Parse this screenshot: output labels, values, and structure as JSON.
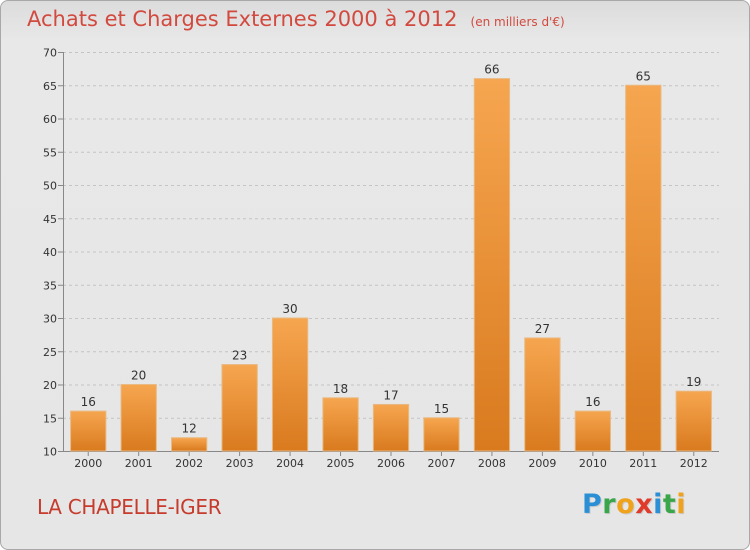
{
  "header": {
    "title": "Achats et Charges Externes 2000 à 2012",
    "subtitle": "(en milliers d'€)"
  },
  "footer": {
    "commune": "LA CHAPELLE-IGER",
    "brand": "Proxiti",
    "brand_letters": [
      {
        "char": "P",
        "color": "#2b8fd6"
      },
      {
        "char": "r",
        "color": "#3aa64a"
      },
      {
        "char": "o",
        "color": "#f0a21a"
      },
      {
        "char": "x",
        "color": "#e03a2a"
      },
      {
        "char": "i",
        "color": "#2b8fd6"
      },
      {
        "char": "t",
        "color": "#3aa64a"
      },
      {
        "char": "i",
        "color": "#f0a21a"
      }
    ]
  },
  "colors": {
    "title": "#d24a3f",
    "bar_light": "#f6a650",
    "bar_dark": "#d97a1e",
    "grid": "#c4c4c4",
    "axis_text": "#333333"
  },
  "chart_data": {
    "type": "bar",
    "title": "Achats et Charges Externes 2000 à 2012",
    "subtitle": "(en milliers d'€)",
    "xlabel": "",
    "ylabel": "",
    "categories": [
      "2000",
      "2001",
      "2002",
      "2003",
      "2004",
      "2005",
      "2006",
      "2007",
      "2008",
      "2009",
      "2010",
      "2011",
      "2012"
    ],
    "values": [
      16,
      20,
      12,
      23,
      30,
      18,
      17,
      15,
      66,
      27,
      16,
      65,
      19
    ],
    "ylim": [
      10,
      70
    ],
    "yticks": [
      10,
      15,
      20,
      25,
      30,
      35,
      40,
      45,
      50,
      55,
      60,
      65,
      70
    ],
    "grid": true,
    "legend": "none"
  }
}
